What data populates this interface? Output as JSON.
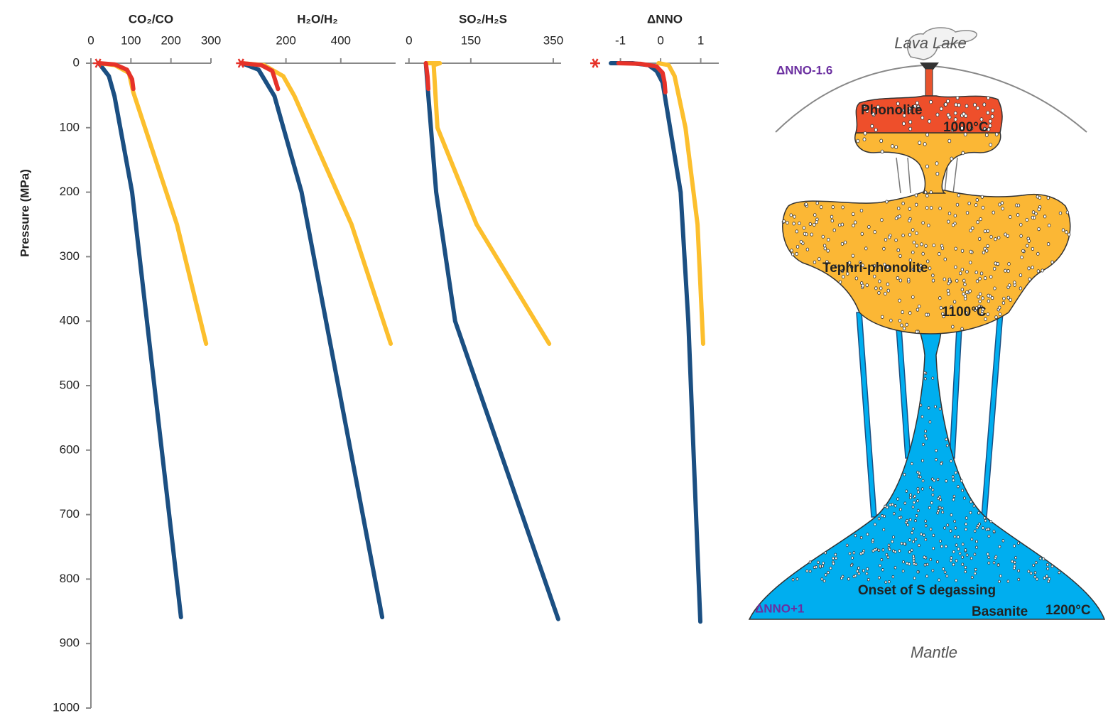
{
  "chart_data": [
    {
      "type": "line",
      "title": "CO₂/CO",
      "ylabel": "Pressure (MPa)",
      "xlim": [
        0,
        300
      ],
      "xticks": [
        0,
        100,
        200,
        300
      ],
      "ylim": [
        0,
        1000
      ],
      "yticks": [
        0,
        100,
        200,
        300,
        400,
        500,
        600,
        700,
        800,
        900,
        1000
      ],
      "start_point": {
        "x": 18,
        "y": 0,
        "color": "#e63229"
      },
      "series": [
        {
          "color": "#1b4f82",
          "x": [
            20,
            45,
            59,
            103,
            225
          ],
          "values": [
            0,
            20,
            51,
            200,
            859
          ]
        },
        {
          "color": "#fcbf2d",
          "x": [
            20,
            60,
            95,
            106,
            215,
            288
          ],
          "values": [
            0,
            3,
            15,
            45,
            250,
            435
          ]
        },
        {
          "color": "#e63229",
          "x": [
            20,
            60,
            90,
            103,
            106
          ],
          "values": [
            0,
            2,
            10,
            25,
            40
          ]
        }
      ]
    },
    {
      "type": "line",
      "title": "H₂O/H₂",
      "xlim": [
        30,
        600
      ],
      "xticks": [
        200,
        400
      ],
      "ylim": [
        0,
        1000
      ],
      "start_point": {
        "x": 36,
        "y": 0,
        "color": "#e63229"
      },
      "series": [
        {
          "color": "#1b4f82",
          "x": [
            39,
            100,
            158,
            257,
            551
          ],
          "values": [
            0,
            10,
            51,
            200,
            859
          ]
        },
        {
          "color": "#fcbf2d",
          "x": [
            39,
            120,
            190,
            231,
            439,
            582
          ],
          "values": [
            0,
            3,
            20,
            51,
            250,
            435
          ]
        },
        {
          "color": "#e63229",
          "x": [
            39,
            110,
            150,
            171
          ],
          "values": [
            0,
            3,
            12,
            40
          ]
        }
      ]
    },
    {
      "type": "line",
      "title": "SO₂/H₂S",
      "xlim": [
        -10,
        369
      ],
      "xticks": [
        0,
        150,
        350
      ],
      "ylim": [
        0,
        1000
      ],
      "series": [
        {
          "color": "#1b4f82",
          "x": [
            41,
            47,
            66,
            112,
            362
          ],
          "values": [
            0,
            51,
            200,
            400,
            862
          ]
        },
        {
          "color": "#fcbf2d",
          "x": [
            41,
            75,
            60,
            69,
            164,
            340
          ],
          "values": [
            0,
            0,
            3,
            100,
            250,
            435
          ]
        },
        {
          "color": "#e63229",
          "x": [
            41,
            45,
            47
          ],
          "values": [
            0,
            20,
            40
          ]
        }
      ]
    },
    {
      "type": "line",
      "title": "ΔNNO",
      "xlim": [
        -1.24,
        1.45
      ],
      "xticks": [
        -1,
        0,
        1
      ],
      "ylim": [
        0,
        1000
      ],
      "start_point": {
        "x": -1.63,
        "y": 0,
        "color": "#e63229"
      },
      "series": [
        {
          "color": "#1b4f82",
          "x": [
            -1.24,
            -0.7,
            -0.3,
            -0.1,
            0.05,
            0.09,
            0.5,
            0.69,
            0.99
          ],
          "values": [
            0,
            0,
            3,
            12,
            30,
            45,
            200,
            400,
            866
          ]
        },
        {
          "color": "#fcbf2d",
          "x": [
            -0.05,
            0.2,
            0.35,
            0.45,
            0.62,
            0.92,
            1.06
          ],
          "values": [
            0,
            3,
            20,
            50,
            100,
            250,
            435
          ]
        },
        {
          "color": "#e63229",
          "x": [
            -1.05,
            -0.5,
            -0.1,
            0.05,
            0.1,
            0.12
          ],
          "values": [
            0,
            1,
            5,
            15,
            30,
            45
          ]
        }
      ]
    }
  ],
  "diagram": {
    "lava_lake": "Lava Lake",
    "nno_top": "ΔNNO-1.6",
    "phonolite": "Phonolite",
    "phonolite_temp": "1000°C",
    "tephri": "Tephri-phonolite",
    "tephri_temp": "1100°C",
    "onset": "Onset of S degassing",
    "nno_bottom": "ΔNNO+1",
    "basanite": "Basanite",
    "basanite_temp": "1200°C",
    "mantle": "Mantle"
  }
}
